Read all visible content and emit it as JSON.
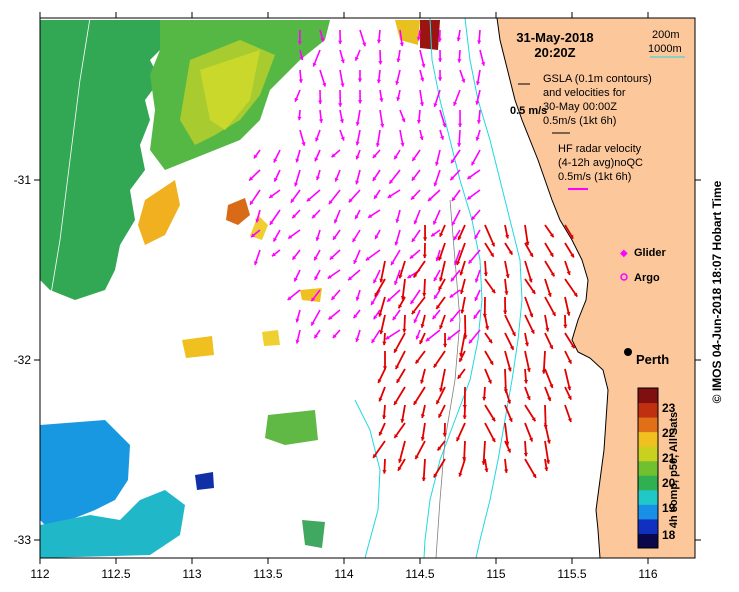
{
  "map": {
    "title_date": "31-May-2018",
    "title_time": "20:20Z",
    "credit": "© IMOS 04-Jun-2018 18:07 Hobart Time",
    "lon_ticks": [
      "112",
      "112.5",
      "113",
      "113.5",
      "114",
      "114.5",
      "115",
      "115.5",
      "116"
    ],
    "lat_ticks": [
      "-31",
      "-32",
      "-33"
    ]
  },
  "legend": {
    "contour_200": "200m",
    "contour_1000": "1000m",
    "gsla_line1": "GSLA (0.1m contours)",
    "gsla_line2": "and velocities for",
    "gsla_line3": "30-May 00:00Z",
    "gsla_scale": "0.5m/s (1kt 6h)",
    "ref_arrow": "0.5 m/s",
    "hf_line1": "HF radar velocity",
    "hf_line2": "(4-12h avg)noQC",
    "hf_scale": "0.5m/s (1kt 6h)",
    "glider": "Glider",
    "argo": "Argo",
    "city": "Perth"
  },
  "colorbar": {
    "title": "4h comp, p50, All Sats",
    "ticks": [
      "18",
      "19",
      "20",
      "21",
      "22",
      "23"
    ],
    "colors": [
      "#08084a",
      "#1030c0",
      "#1890e8",
      "#20c8c8",
      "#30b050",
      "#70c030",
      "#c8d020",
      "#f0c020",
      "#e07018",
      "#c03010",
      "#801010"
    ]
  },
  "colors": {
    "land": "#fbc79b",
    "hf_arrow": "#ff00ff",
    "gsla_arrow": "#e00000",
    "contour": "#20d8e0",
    "gsla_contour": "#808080"
  }
}
